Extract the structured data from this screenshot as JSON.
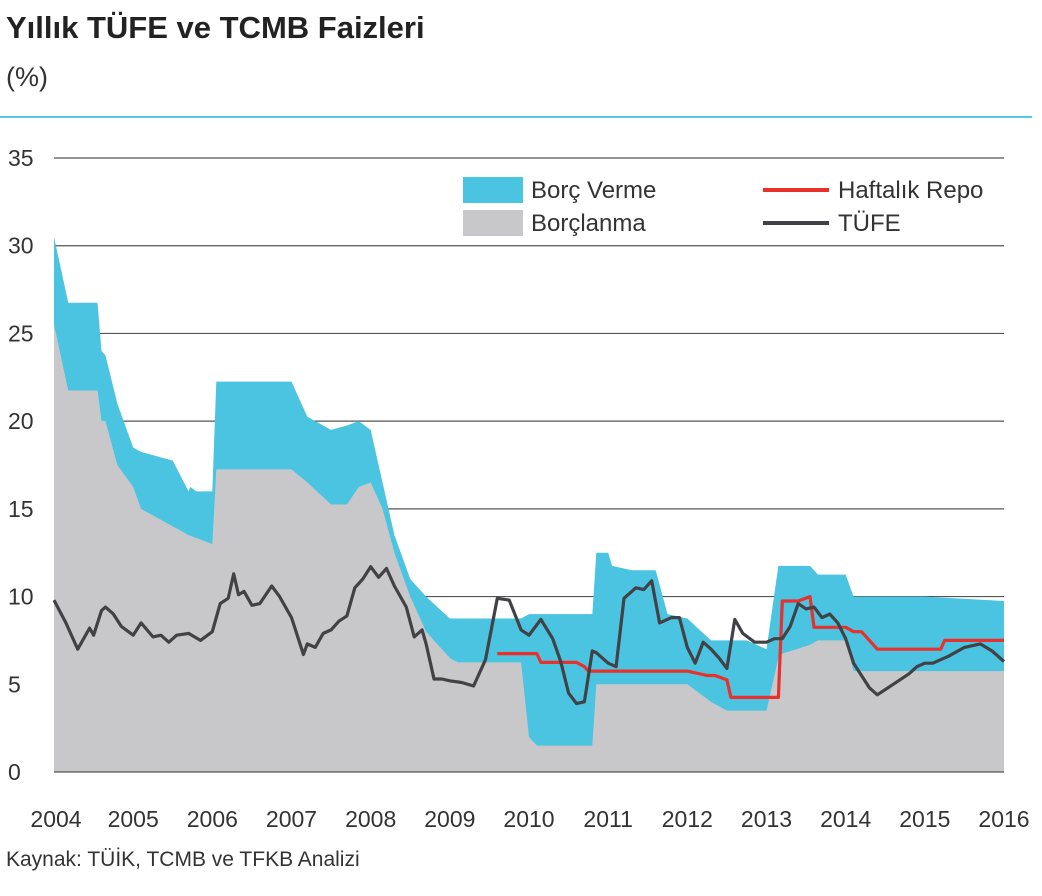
{
  "header": {
    "title": "Yıllık TÜFE ve TCMB Faizleri",
    "unit": "(%)"
  },
  "footer": {
    "source": "Kaynak: TÜİK, TCMB ve TFKB Analizi"
  },
  "colors": {
    "lending": "#4bc4e2",
    "borrowing": "#c8c8ca",
    "repo": "#e8312b",
    "cpi": "#414146",
    "rule": "#5bc5e3"
  },
  "chart_data": {
    "type": "area",
    "ylim": [
      0,
      35
    ],
    "yticks": [
      0,
      5,
      10,
      15,
      20,
      25,
      30,
      35
    ],
    "xlim": [
      2004,
      2016
    ],
    "xticks": [
      "2004",
      "2005",
      "2006",
      "2007",
      "2008",
      "2009",
      "2010",
      "2011",
      "2012",
      "2013",
      "2014",
      "2015",
      "2016"
    ],
    "grid": "horizontal",
    "legend_position": "top-right",
    "series": [
      {
        "name": "Borç Verme",
        "kind": "band-upper",
        "x": [
          2004.0,
          2004.18,
          2004.55,
          2004.6,
          2004.65,
          2004.8,
          2005.0,
          2005.1,
          2005.5,
          2005.7,
          2005.72,
          2005.8,
          2006.0,
          2006.05,
          2006.2,
          2006.5,
          2007.0,
          2007.2,
          2007.5,
          2007.7,
          2007.85,
          2008.0,
          2008.15,
          2008.3,
          2008.5,
          2008.7,
          2009.0,
          2009.1,
          2009.5,
          2009.9,
          2010.0,
          2010.5,
          2010.8,
          2010.85,
          2011.0,
          2011.05,
          2011.3,
          2011.6,
          2011.75,
          2012.0,
          2012.3,
          2012.5,
          2012.75,
          2013.0,
          2013.15,
          2013.2,
          2013.55,
          2013.65,
          2014.0,
          2014.1,
          2015.0,
          2016.0
        ],
        "values": [
          30.5,
          26.75,
          26.75,
          24.0,
          23.75,
          21.0,
          18.5,
          18.25,
          17.75,
          16.0,
          16.25,
          16.0,
          16.0,
          22.25,
          22.25,
          22.25,
          22.25,
          20.25,
          19.5,
          19.75,
          20.0,
          19.5,
          16.5,
          13.5,
          11.0,
          10.0,
          8.75,
          8.75,
          8.75,
          8.75,
          9.0,
          9.0,
          9.0,
          12.5,
          12.5,
          11.75,
          11.5,
          11.5,
          9.0,
          8.75,
          7.5,
          7.5,
          7.5,
          7.0,
          11.75,
          11.75,
          11.75,
          11.25,
          11.25,
          10.0,
          10.0,
          9.75
        ]
      },
      {
        "name": "Borçlanma",
        "kind": "band-lower",
        "x": [
          2004.0,
          2004.18,
          2004.55,
          2004.6,
          2004.65,
          2004.8,
          2005.0,
          2005.1,
          2005.5,
          2005.7,
          2006.0,
          2006.05,
          2006.2,
          2006.5,
          2007.0,
          2007.2,
          2007.5,
          2007.7,
          2007.85,
          2008.0,
          2008.15,
          2008.3,
          2008.5,
          2008.7,
          2009.0,
          2009.1,
          2009.5,
          2009.9,
          2010.0,
          2010.1,
          2010.5,
          2010.8,
          2010.85,
          2011.0,
          2011.3,
          2011.6,
          2011.75,
          2012.0,
          2012.3,
          2012.5,
          2012.75,
          2013.0,
          2013.15,
          2013.2,
          2013.55,
          2013.65,
          2014.0,
          2014.1,
          2015.0,
          2016.0
        ],
        "values": [
          25.5,
          21.75,
          21.75,
          20.0,
          20.0,
          17.5,
          16.25,
          15.0,
          14.0,
          13.5,
          13.0,
          17.25,
          17.25,
          17.25,
          17.25,
          16.5,
          15.25,
          15.25,
          16.25,
          16.5,
          15.0,
          12.5,
          10.0,
          8.0,
          6.5,
          6.25,
          6.25,
          6.25,
          2.0,
          1.5,
          1.5,
          1.5,
          5.0,
          5.0,
          5.0,
          5.0,
          5.0,
          5.0,
          4.0,
          3.5,
          3.5,
          3.5,
          6.5,
          6.75,
          7.25,
          7.5,
          7.5,
          5.75,
          5.75,
          5.75
        ]
      },
      {
        "name": "Haftalık Repo",
        "kind": "line",
        "x": [
          2009.6,
          2010.1,
          2010.15,
          2010.5,
          2010.6,
          2010.7,
          2010.75,
          2011.0,
          2011.5,
          2011.9,
          2012.0,
          2012.25,
          2012.35,
          2012.5,
          2012.55,
          2012.9,
          2013.0,
          2013.15,
          2013.2,
          2013.4,
          2013.55,
          2013.6,
          2014.0,
          2014.1,
          2014.2,
          2014.4,
          2014.9,
          2015.0,
          2015.2,
          2015.25,
          2016.0
        ],
        "values": [
          6.75,
          6.75,
          6.25,
          6.25,
          6.25,
          6.0,
          5.75,
          5.75,
          5.75,
          5.75,
          5.75,
          5.5,
          5.5,
          5.25,
          4.25,
          4.25,
          4.25,
          4.25,
          9.75,
          9.75,
          10.0,
          8.25,
          8.25,
          8.0,
          8.0,
          7.0,
          7.0,
          7.0,
          7.0,
          7.5,
          7.5
        ]
      },
      {
        "name": "TÜFE",
        "kind": "line",
        "x": [
          2004.0,
          2004.15,
          2004.3,
          2004.45,
          2004.5,
          2004.6,
          2004.65,
          2004.75,
          2004.85,
          2005.0,
          2005.1,
          2005.25,
          2005.35,
          2005.45,
          2005.55,
          2005.7,
          2005.85,
          2006.0,
          2006.1,
          2006.2,
          2006.27,
          2006.33,
          2006.4,
          2006.5,
          2006.6,
          2006.75,
          2006.85,
          2006.95,
          2007.0,
          2007.05,
          2007.15,
          2007.2,
          2007.3,
          2007.4,
          2007.5,
          2007.6,
          2007.7,
          2007.8,
          2007.9,
          2008.0,
          2008.1,
          2008.2,
          2008.3,
          2008.45,
          2008.55,
          2008.65,
          2008.7,
          2008.8,
          2008.9,
          2009.0,
          2009.15,
          2009.3,
          2009.45,
          2009.6,
          2009.75,
          2009.9,
          2010.0,
          2010.15,
          2010.3,
          2010.4,
          2010.5,
          2010.6,
          2010.7,
          2010.8,
          2010.85,
          2011.0,
          2011.1,
          2011.2,
          2011.35,
          2011.45,
          2011.55,
          2011.65,
          2011.8,
          2011.9,
          2012.0,
          2012.1,
          2012.2,
          2012.3,
          2012.4,
          2012.5,
          2012.6,
          2012.7,
          2012.85,
          2013.0,
          2013.1,
          2013.2,
          2013.3,
          2013.4,
          2013.5,
          2013.6,
          2013.7,
          2013.8,
          2013.9,
          2014.0,
          2014.1,
          2014.3,
          2014.4,
          2014.6,
          2014.8,
          2014.9,
          2015.0,
          2015.1,
          2015.3,
          2015.5,
          2015.7,
          2015.85,
          2016.0
        ],
        "values": [
          9.8,
          8.5,
          7.0,
          8.2,
          7.8,
          9.2,
          9.4,
          9.0,
          8.3,
          7.8,
          8.5,
          7.7,
          7.8,
          7.4,
          7.8,
          7.9,
          7.5,
          8.0,
          9.6,
          9.9,
          11.3,
          10.1,
          10.3,
          9.5,
          9.6,
          10.6,
          10.0,
          9.2,
          8.8,
          8.1,
          6.7,
          7.3,
          7.1,
          7.9,
          8.1,
          8.6,
          8.9,
          10.5,
          11.0,
          11.7,
          11.1,
          11.6,
          10.6,
          9.4,
          7.7,
          8.1,
          7.3,
          5.3,
          5.3,
          5.2,
          5.1,
          4.9,
          6.4,
          9.9,
          9.8,
          8.1,
          7.8,
          8.7,
          7.6,
          6.3,
          4.5,
          3.9,
          4.0,
          6.9,
          6.8,
          6.2,
          6.0,
          9.9,
          10.5,
          10.4,
          10.9,
          8.5,
          8.8,
          8.8,
          7.1,
          6.2,
          7.4,
          7.0,
          6.5,
          5.9,
          8.7,
          7.9,
          7.4,
          7.4,
          7.6,
          7.6,
          8.3,
          9.6,
          9.3,
          9.4,
          8.8,
          9.0,
          8.5,
          7.6,
          6.2,
          4.8,
          4.4,
          5.0,
          5.6,
          6.0,
          6.2,
          6.2,
          6.6,
          7.1,
          7.3,
          6.9,
          6.3
        ]
      }
    ]
  }
}
